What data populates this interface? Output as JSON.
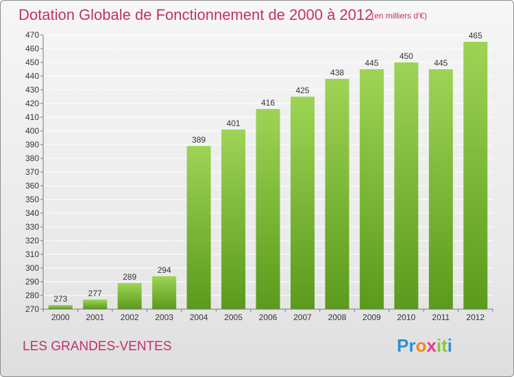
{
  "title": "Dotation Globale de Fonctionnement de 2000 à 2012",
  "unit_note": "(en milliers d'€)",
  "commune": "LES GRANDES-VENTES",
  "logo": {
    "letters": [
      "P",
      "r",
      "o",
      "x",
      "i",
      "t",
      "i"
    ],
    "colors": [
      "#2f8fd1",
      "#2f8fd1",
      "#f08a1c",
      "#e53a8e",
      "#8dc63f",
      "#8dc63f",
      "#2f8fd1"
    ]
  },
  "colors": {
    "bar_light": "#9ed455",
    "bar_dark": "#5a9a1c",
    "grid": "#ffffff",
    "title": "#c0306e"
  },
  "chart_data": {
    "type": "bar",
    "title": "Dotation Globale de Fonctionnement de 2000 à 2012",
    "categories": [
      "2000",
      "2001",
      "2002",
      "2003",
      "2004",
      "2005",
      "2006",
      "2007",
      "2008",
      "2009",
      "2010",
      "2011",
      "2012"
    ],
    "values": [
      273,
      277,
      289,
      294,
      389,
      401,
      416,
      425,
      438,
      445,
      450,
      445,
      465
    ],
    "ylim": [
      270,
      470
    ],
    "yticks": [
      270,
      280,
      290,
      300,
      310,
      320,
      330,
      340,
      350,
      360,
      370,
      380,
      390,
      400,
      410,
      420,
      430,
      440,
      450,
      460,
      470
    ],
    "xlabel": "",
    "ylabel": "",
    "grid": true,
    "data_labels": true
  }
}
